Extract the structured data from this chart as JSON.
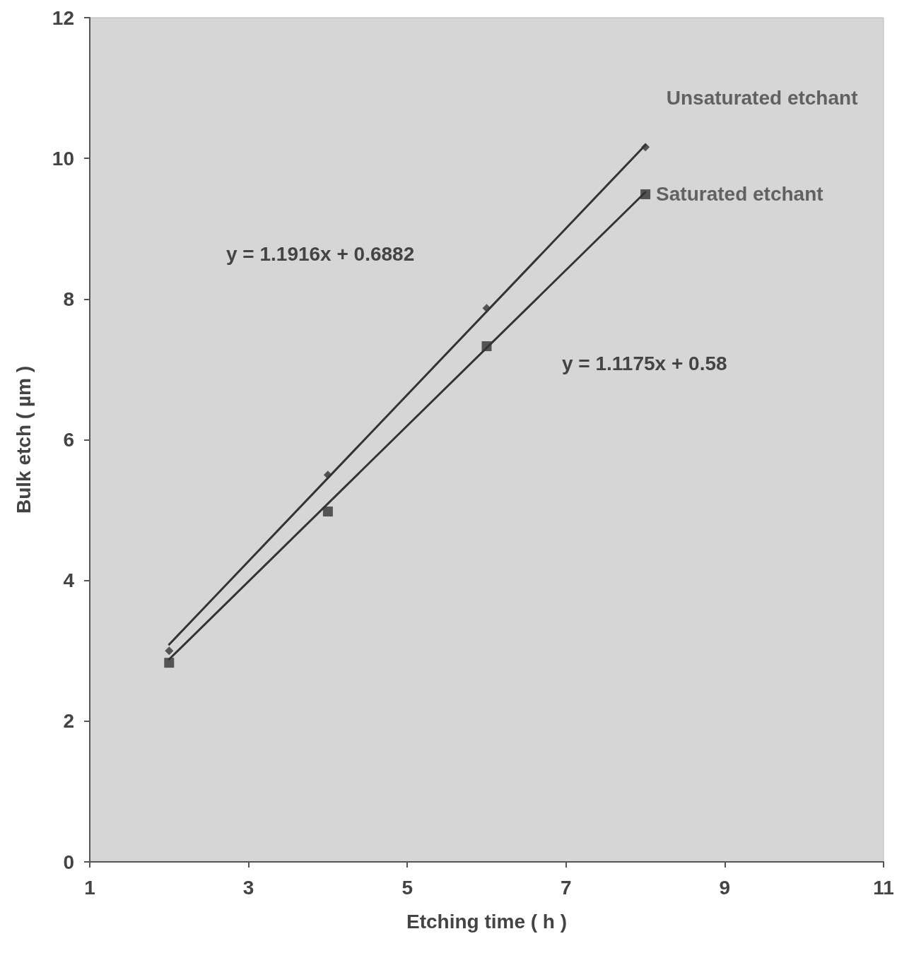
{
  "chart_data": {
    "type": "scatter",
    "xlabel": "Etching time ( h )",
    "ylabel": "Bulk etch ( µm )",
    "xlim": [
      1,
      11
    ],
    "xticks": [
      1,
      3,
      5,
      7,
      9,
      11
    ],
    "ylim": [
      0,
      12
    ],
    "yticks": [
      0,
      2,
      4,
      6,
      8,
      10,
      12
    ],
    "grid": false,
    "legend": false,
    "series": [
      {
        "name": "Unsaturated etchant",
        "color": "#333333",
        "marker": "diamond",
        "x": [
          2,
          4,
          6,
          8
        ],
        "values": [
          3.0,
          5.5,
          7.87,
          10.16
        ]
      },
      {
        "name": "Saturated etchant",
        "color": "#333333",
        "marker": "square",
        "x": [
          2,
          4,
          6,
          8
        ],
        "values": [
          2.83,
          4.98,
          7.33,
          9.49
        ]
      },
      {
        "type": "line",
        "color": "#333333",
        "marker": "none",
        "x": [
          2,
          8
        ],
        "values": [
          3.09,
          10.19
        ]
      },
      {
        "type": "line",
        "color": "#333333",
        "marker": "none",
        "x": [
          2,
          8
        ],
        "values": [
          2.88,
          9.52
        ]
      }
    ],
    "annotations": [
      "y = 1.1916x + 0.6882",
      "y = 1.1175x + 0.58"
    ]
  }
}
